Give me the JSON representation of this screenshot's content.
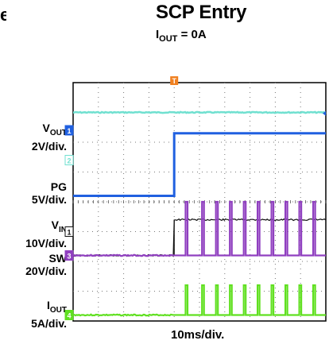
{
  "title": "SCP Entry",
  "subtitle": {
    "prefix": "I",
    "sub": "OUT",
    "suffix": " = 0A"
  },
  "clipped_left_text": "e",
  "x_scale_label": "10ms/div.",
  "channel_labels": [
    {
      "main": "V",
      "sub": "OUT",
      "scale": "2V/div."
    },
    {
      "main": "PG",
      "sub": "",
      "scale": "5V/div."
    },
    {
      "main": "V",
      "sub": "IN",
      "scale": "10V/div."
    },
    {
      "main": "SW",
      "sub": "",
      "scale": "20V/div."
    },
    {
      "main": "I",
      "sub": "OUT",
      "scale": "5A/div."
    }
  ],
  "trigger_marker": "T",
  "chart_data": {
    "type": "line",
    "title": "SCP Entry",
    "x_scale": "10ms/div.",
    "x_divisions": 10,
    "y_divisions": 8,
    "trigger_division": 4,
    "grid": true,
    "series": [
      {
        "name": "VOUT",
        "scale": "2V/div.",
        "channel": "1",
        "color": "#2060e0",
        "before_trigger_div": 3.8,
        "after_trigger_div": 1.7,
        "marker_div": 1.6
      },
      {
        "name": "VIN",
        "scale": "10V/div.",
        "channel": "2",
        "color": "#70e0d0",
        "before_trigger_div": 1.0,
        "after_trigger_div": 1.0,
        "marker_div": 2.6
      },
      {
        "name": "PG",
        "scale": "5V/div.",
        "channel": "1",
        "color": "#111111",
        "before_trigger_div": 5.8,
        "after_trigger_div": 4.6,
        "marker_div": 5.0
      },
      {
        "name": "SW",
        "scale": "20V/div.",
        "channel": "3",
        "color": "#9040c0",
        "before_trigger_div": 5.8,
        "after_trigger_div": 5.8,
        "pulse_high_div": 4.0,
        "pulse_times_div": [
          4.45,
          5.1,
          5.65,
          6.2,
          6.75,
          7.3,
          7.85,
          8.4,
          8.95,
          9.5
        ],
        "marker_div": 5.8
      },
      {
        "name": "IOUT",
        "scale": "5A/div.",
        "channel": "4",
        "color": "#60e020",
        "before_trigger_div": 7.8,
        "after_trigger_div": 7.8,
        "pulse_high_div": 6.8,
        "pulse_times_div": [
          4.45,
          5.1,
          5.65,
          6.2,
          6.75,
          7.3,
          7.85,
          8.4,
          8.95,
          9.5
        ],
        "marker_div": 7.8
      }
    ]
  }
}
